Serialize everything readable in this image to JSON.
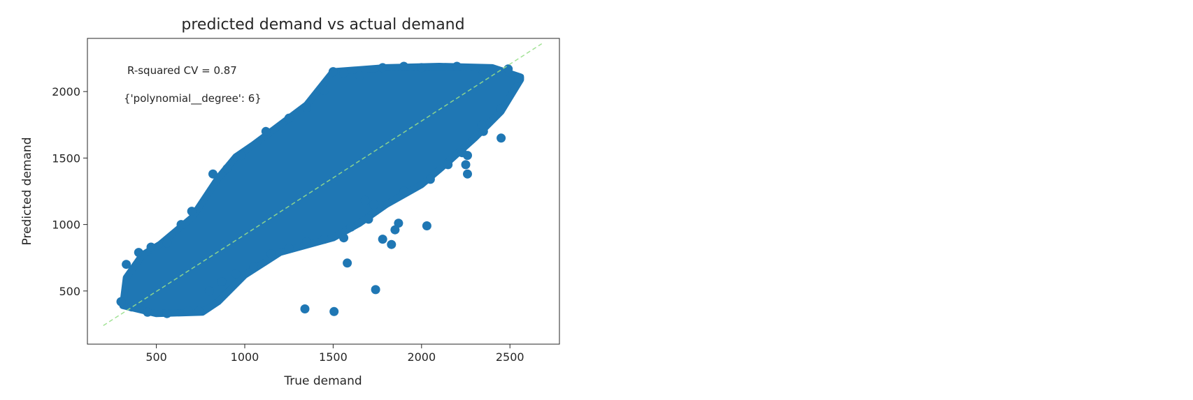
{
  "chart_data": {
    "type": "scatter",
    "title": "predicted demand vs actual demand",
    "xlabel": "True demand",
    "ylabel": "Predicted demand",
    "xlim": [
      110,
      2780
    ],
    "ylim": [
      100,
      2400
    ],
    "xticks": [
      500,
      1000,
      1500,
      2000,
      2500
    ],
    "yticks": [
      500,
      1000,
      1500,
      2000
    ],
    "grid": false,
    "annotations": [
      "R-squared CV = 0.87",
      "{'polynomial__degree': 6}"
    ],
    "reference_line": {
      "x": [
        200,
        2680
      ],
      "y": [
        240,
        2360
      ],
      "style": "dashed",
      "color": "#98df8a"
    },
    "point_color": "#1f77b4",
    "point_cloud": {
      "x_range": [
        310,
        2560
      ],
      "y_range": [
        320,
        2190
      ],
      "lower_boundary": [
        [
          310,
          390
        ],
        [
          500,
          330
        ],
        [
          760,
          340
        ],
        [
          850,
          420
        ],
        [
          1000,
          620
        ],
        [
          1200,
          790
        ],
        [
          1500,
          900
        ],
        [
          1650,
          1010
        ],
        [
          1800,
          1150
        ],
        [
          2000,
          1300
        ],
        [
          2150,
          1470
        ],
        [
          2300,
          1650
        ],
        [
          2450,
          1850
        ],
        [
          2560,
          2090
        ]
      ],
      "upper_boundary": [
        [
          310,
          390
        ],
        [
          330,
          600
        ],
        [
          420,
          770
        ],
        [
          520,
          850
        ],
        [
          700,
          1050
        ],
        [
          850,
          1350
        ],
        [
          950,
          1510
        ],
        [
          1050,
          1600
        ],
        [
          1200,
          1750
        ],
        [
          1350,
          1900
        ],
        [
          1500,
          2150
        ],
        [
          1800,
          2180
        ],
        [
          2100,
          2190
        ],
        [
          2400,
          2180
        ],
        [
          2560,
          2110
        ]
      ],
      "scatter_points": [
        [
          330,
          700
        ],
        [
          300,
          420
        ],
        [
          400,
          790
        ],
        [
          470,
          830
        ],
        [
          560,
          860
        ],
        [
          640,
          1000
        ],
        [
          700,
          1100
        ],
        [
          820,
          1380
        ],
        [
          900,
          1420
        ],
        [
          980,
          1520
        ],
        [
          1120,
          1700
        ],
        [
          1250,
          1800
        ],
        [
          1350,
          1880
        ],
        [
          1450,
          2010
        ],
        [
          1500,
          2150
        ],
        [
          1560,
          2140
        ],
        [
          1650,
          2120
        ],
        [
          1780,
          2180
        ],
        [
          1900,
          2190
        ],
        [
          2000,
          2180
        ],
        [
          2200,
          2190
        ],
        [
          2350,
          2150
        ],
        [
          2490,
          2170
        ],
        [
          2550,
          2100
        ],
        [
          360,
          380
        ],
        [
          450,
          340
        ],
        [
          560,
          330
        ],
        [
          680,
          350
        ],
        [
          740,
          350
        ],
        [
          800,
          500
        ],
        [
          870,
          570
        ],
        [
          950,
          630
        ],
        [
          1050,
          680
        ],
        [
          1150,
          780
        ],
        [
          1250,
          820
        ],
        [
          1350,
          870
        ],
        [
          1450,
          890
        ],
        [
          1560,
          900
        ],
        [
          1600,
          980
        ],
        [
          1700,
          1040
        ],
        [
          1760,
          1150
        ],
        [
          1900,
          1250
        ],
        [
          2050,
          1340
        ],
        [
          2150,
          1450
        ],
        [
          2260,
          1520
        ],
        [
          2350,
          1700
        ],
        [
          2450,
          1870
        ]
      ],
      "outliers": [
        [
          1340,
          365
        ],
        [
          1505,
          345
        ],
        [
          1740,
          510
        ],
        [
          1580,
          710
        ],
        [
          1780,
          890
        ],
        [
          1830,
          850
        ],
        [
          1870,
          1010
        ],
        [
          1850,
          960
        ],
        [
          2030,
          990
        ],
        [
          2260,
          1380
        ],
        [
          2250,
          1450
        ],
        [
          2230,
          1540
        ],
        [
          2450,
          1650
        ],
        [
          2340,
          1750
        ],
        [
          1680,
          1180
        ],
        [
          1730,
          1150
        ]
      ]
    }
  }
}
